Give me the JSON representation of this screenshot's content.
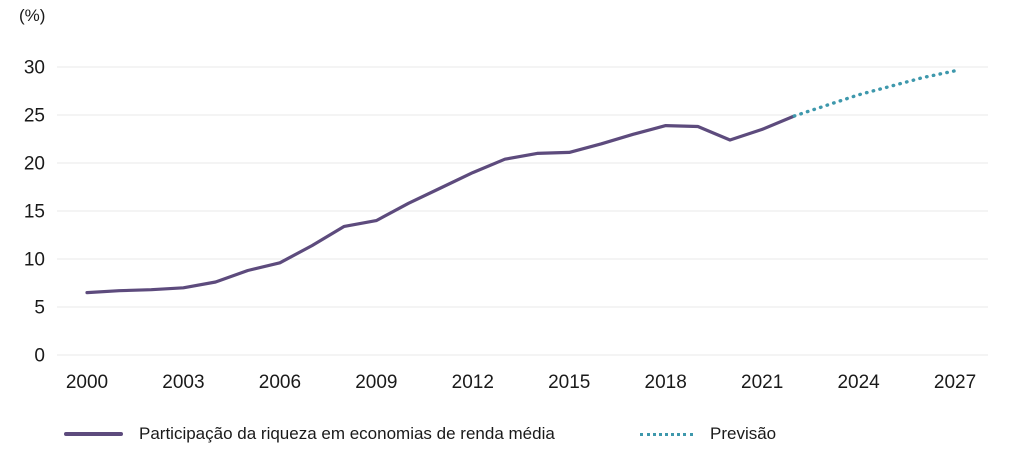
{
  "colors": {
    "background": "#ffffff",
    "text": "#1a1a1a",
    "grid": "#e9e9e9",
    "series_solid": "#5d4b7d",
    "series_dotted": "#3e98ac"
  },
  "chart_data": {
    "type": "line",
    "title": "",
    "xlabel": "",
    "ylabel": "(%)",
    "ylim": [
      0,
      30
    ],
    "xlim": [
      1999,
      2028
    ],
    "grid": "horizontal-only",
    "legend_position": "bottom",
    "y_ticks": [
      0,
      5,
      10,
      15,
      20,
      25,
      30
    ],
    "x_ticks": [
      2000,
      2003,
      2006,
      2009,
      2012,
      2015,
      2018,
      2021,
      2024,
      2027
    ],
    "series": [
      {
        "name": "Participação da riqueza em economias de renda média",
        "style": "solid",
        "color": "#5d4b7d",
        "x": [
          2000,
          2001,
          2002,
          2003,
          2004,
          2005,
          2006,
          2007,
          2008,
          2009,
          2010,
          2011,
          2012,
          2013,
          2014,
          2015,
          2016,
          2017,
          2018,
          2019,
          2020,
          2021,
          2022
        ],
        "values": [
          6.5,
          6.7,
          6.8,
          7.0,
          7.6,
          8.8,
          9.6,
          11.4,
          13.4,
          14.0,
          15.8,
          17.4,
          19.0,
          20.4,
          21.0,
          21.1,
          22.0,
          23.0,
          23.9,
          23.8,
          22.4,
          23.5,
          24.9
        ]
      },
      {
        "name": "Previsão",
        "style": "dotted",
        "color": "#3e98ac",
        "x": [
          2022,
          2023,
          2024,
          2025,
          2026,
          2027
        ],
        "values": [
          24.9,
          26.0,
          27.1,
          28.0,
          28.9,
          29.6
        ]
      }
    ]
  }
}
